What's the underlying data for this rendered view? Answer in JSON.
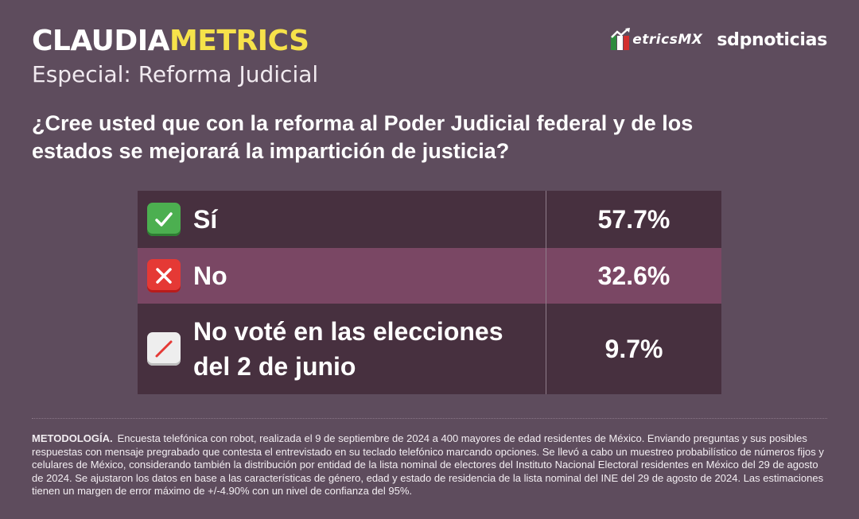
{
  "header": {
    "brand_part1": "CLAUDIA",
    "brand_part2": "METRICS",
    "subtitle": "Especial: Reforma Judicial",
    "logo_metrics": "etricsMX",
    "logo_sdp": "sdpnoticias"
  },
  "question": "¿Cree usted que con la reforma al Poder Judicial federal y de los estados se mejorará la impartición de justicia?",
  "results": [
    {
      "label": "Sí",
      "value": "57.7%",
      "icon": "check-icon",
      "color": "#4caf50"
    },
    {
      "label": "No",
      "value": "32.6%",
      "icon": "cross-icon",
      "color": "#e53935"
    },
    {
      "label": "No voté en las elecciones del 2 de junio",
      "value": "9.7%",
      "icon": "slash-icon",
      "color": "#eeeeee"
    }
  ],
  "methodology": {
    "label": "METODOLOGÍA.",
    "text": "Encuesta telefónica con robot, realizada el 9 de septiembre de 2024 a 400 mayores de edad residentes de México. Enviando preguntas y sus posibles respuestas con mensaje pregrabado que contesta el entrevistado en su teclado telefónico marcando opciones. Se llevó a cabo un muestreo probabilístico de números fijos y celulares de México, considerando también la distribución por entidad de la lista nominal de electores del Instituto Nacional Electoral residentes en México del 29 de agosto de 2024. Se ajustaron los datos en base a las características de género, edad y estado de residencia de la lista nominal del INE del 29 de agosto de 2024. Las estimaciones tienen un margen de error máximo de +/-4.90% con un nivel de confianza del 95%."
  },
  "colors": {
    "background": "#5e4c5d",
    "accent": "#f6e24a",
    "row_dark": "#47303f",
    "row_highlight": "#7a4764"
  }
}
